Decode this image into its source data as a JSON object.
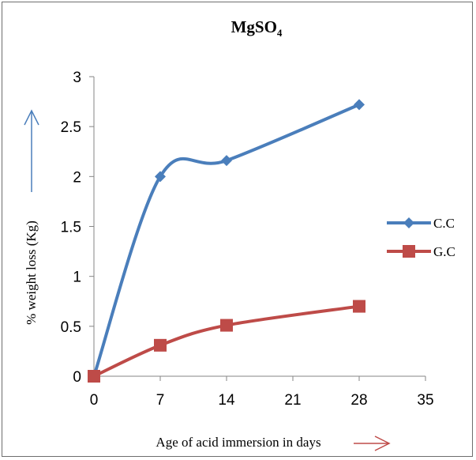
{
  "chart_data": {
    "type": "line",
    "title": "MgSO",
    "title_subscript": "4",
    "xlabel": "Age of acid immersion in days",
    "ylabel": "% weight loss (Kg)",
    "xlim": [
      0,
      35
    ],
    "ylim": [
      0,
      3
    ],
    "xticks": [
      0,
      7,
      14,
      21,
      28,
      35
    ],
    "yticks": [
      0,
      0.5,
      1,
      1.5,
      2,
      2.5,
      3
    ],
    "grid": false,
    "legend_position": "right",
    "series": [
      {
        "name": "C.C",
        "color": "#4a7ebb",
        "marker": "diamond",
        "smooth": true,
        "x": [
          0,
          7,
          14,
          28
        ],
        "y": [
          0,
          2.0,
          2.16,
          2.72
        ]
      },
      {
        "name": "G.C",
        "color": "#be4b48",
        "marker": "square",
        "smooth": true,
        "x": [
          0,
          7,
          14,
          28
        ],
        "y": [
          0,
          0.31,
          0.51,
          0.7
        ]
      }
    ]
  },
  "colors": {
    "arrow_y": "#4a7ebb",
    "arrow_x": "#be4b48",
    "axis": "#868686"
  }
}
